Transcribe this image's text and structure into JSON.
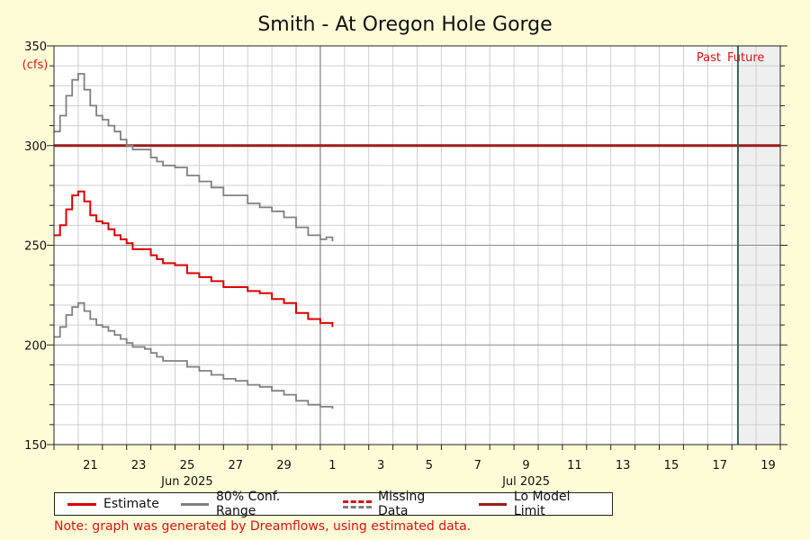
{
  "chart_data": {
    "type": "line",
    "title": "Smith - At Oregon Hole Gorge",
    "unit_label": "(cfs)",
    "ylim": [
      150,
      350
    ],
    "y_ticks": [
      "150",
      "200",
      "250",
      "300",
      "350"
    ],
    "x_range": [
      "2025-06-20",
      "2025-07-20"
    ],
    "x_tick_labels": [
      {
        "date": "2025-06-21",
        "label": "21"
      },
      {
        "date": "2025-06-23",
        "label": "23"
      },
      {
        "date": "2025-06-25",
        "label": "25"
      },
      {
        "date": "2025-06-27",
        "label": "27"
      },
      {
        "date": "2025-06-29",
        "label": "29"
      },
      {
        "date": "2025-07-01",
        "label": "1"
      },
      {
        "date": "2025-07-03",
        "label": "3"
      },
      {
        "date": "2025-07-05",
        "label": "5"
      },
      {
        "date": "2025-07-07",
        "label": "7"
      },
      {
        "date": "2025-07-09",
        "label": "9"
      },
      {
        "date": "2025-07-11",
        "label": "11"
      },
      {
        "date": "2025-07-13",
        "label": "13"
      },
      {
        "date": "2025-07-15",
        "label": "15"
      },
      {
        "date": "2025-07-17",
        "label": "17"
      },
      {
        "date": "2025-07-19",
        "label": "19"
      }
    ],
    "month_labels": [
      {
        "date": "2025-06-25",
        "label": "Jun 2025"
      },
      {
        "date": "2025-07-09",
        "label": "Jul 2025"
      }
    ],
    "past_label": "Past",
    "future_label": "Future",
    "now_marker": "2025-07-18T06:00",
    "data_end": "2025-06-30T24:00",
    "lo_model_limit": 300,
    "series": [
      {
        "name": "Estimate",
        "color": "#dd0000",
        "points": [
          [
            "2025-06-20T00:00",
            255
          ],
          [
            "2025-06-20T06:00",
            260
          ],
          [
            "2025-06-20T12:00",
            268
          ],
          [
            "2025-06-20T18:00",
            275
          ],
          [
            "2025-06-21T00:00",
            277
          ],
          [
            "2025-06-21T06:00",
            272
          ],
          [
            "2025-06-21T12:00",
            265
          ],
          [
            "2025-06-21T18:00",
            262
          ],
          [
            "2025-06-22T00:00",
            261
          ],
          [
            "2025-06-22T06:00",
            258
          ],
          [
            "2025-06-22T12:00",
            255
          ],
          [
            "2025-06-22T18:00",
            253
          ],
          [
            "2025-06-23T00:00",
            251
          ],
          [
            "2025-06-23T06:00",
            248
          ],
          [
            "2025-06-23T18:00",
            248
          ],
          [
            "2025-06-24T00:00",
            245
          ],
          [
            "2025-06-24T06:00",
            243
          ],
          [
            "2025-06-24T12:00",
            241
          ],
          [
            "2025-06-25T00:00",
            240
          ],
          [
            "2025-06-25T12:00",
            236
          ],
          [
            "2025-06-26T00:00",
            234
          ],
          [
            "2025-06-26T12:00",
            232
          ],
          [
            "2025-06-27T00:00",
            229
          ],
          [
            "2025-06-27T12:00",
            229
          ],
          [
            "2025-06-28T00:00",
            227
          ],
          [
            "2025-06-28T12:00",
            226
          ],
          [
            "2025-06-29T00:00",
            223
          ],
          [
            "2025-06-29T12:00",
            221
          ],
          [
            "2025-06-30T00:00",
            216
          ],
          [
            "2025-06-30T12:00",
            213
          ],
          [
            "2025-07-01T00:00",
            211
          ],
          [
            "2025-07-01T06:00",
            211
          ],
          [
            "2025-07-01T12:00",
            209
          ]
        ]
      },
      {
        "name": "80% Conf. Range",
        "role": "upper",
        "color": "#808080",
        "points": [
          [
            "2025-06-20T00:00",
            307
          ],
          [
            "2025-06-20T06:00",
            315
          ],
          [
            "2025-06-20T12:00",
            325
          ],
          [
            "2025-06-20T18:00",
            333
          ],
          [
            "2025-06-21T00:00",
            336
          ],
          [
            "2025-06-21T06:00",
            328
          ],
          [
            "2025-06-21T12:00",
            320
          ],
          [
            "2025-06-21T18:00",
            315
          ],
          [
            "2025-06-22T00:00",
            313
          ],
          [
            "2025-06-22T06:00",
            310
          ],
          [
            "2025-06-22T12:00",
            307
          ],
          [
            "2025-06-22T18:00",
            303
          ],
          [
            "2025-06-23T00:00",
            300
          ],
          [
            "2025-06-23T06:00",
            298
          ],
          [
            "2025-06-23T18:00",
            298
          ],
          [
            "2025-06-24T00:00",
            294
          ],
          [
            "2025-06-24T06:00",
            292
          ],
          [
            "2025-06-24T12:00",
            290
          ],
          [
            "2025-06-25T00:00",
            289
          ],
          [
            "2025-06-25T12:00",
            285
          ],
          [
            "2025-06-26T00:00",
            282
          ],
          [
            "2025-06-26T12:00",
            279
          ],
          [
            "2025-06-27T00:00",
            275
          ],
          [
            "2025-06-27T12:00",
            275
          ],
          [
            "2025-06-28T00:00",
            271
          ],
          [
            "2025-06-28T12:00",
            269
          ],
          [
            "2025-06-29T00:00",
            267
          ],
          [
            "2025-06-29T12:00",
            264
          ],
          [
            "2025-06-30T00:00",
            259
          ],
          [
            "2025-06-30T12:00",
            255
          ],
          [
            "2025-07-01T00:00",
            253
          ],
          [
            "2025-07-01T06:00",
            254
          ],
          [
            "2025-07-01T12:00",
            252
          ]
        ]
      },
      {
        "name": "80% Conf. Range",
        "role": "lower",
        "color": "#808080",
        "points": [
          [
            "2025-06-20T00:00",
            204
          ],
          [
            "2025-06-20T06:00",
            209
          ],
          [
            "2025-06-20T12:00",
            215
          ],
          [
            "2025-06-20T18:00",
            219
          ],
          [
            "2025-06-21T00:00",
            221
          ],
          [
            "2025-06-21T06:00",
            217
          ],
          [
            "2025-06-21T12:00",
            213
          ],
          [
            "2025-06-21T18:00",
            210
          ],
          [
            "2025-06-22T00:00",
            209
          ],
          [
            "2025-06-22T06:00",
            207
          ],
          [
            "2025-06-22T12:00",
            205
          ],
          [
            "2025-06-22T18:00",
            203
          ],
          [
            "2025-06-23T00:00",
            201
          ],
          [
            "2025-06-23T06:00",
            199
          ],
          [
            "2025-06-23T18:00",
            198
          ],
          [
            "2025-06-24T00:00",
            196
          ],
          [
            "2025-06-24T06:00",
            194
          ],
          [
            "2025-06-24T12:00",
            192
          ],
          [
            "2025-06-25T00:00",
            192
          ],
          [
            "2025-06-25T12:00",
            189
          ],
          [
            "2025-06-26T00:00",
            187
          ],
          [
            "2025-06-26T12:00",
            185
          ],
          [
            "2025-06-27T00:00",
            183
          ],
          [
            "2025-06-27T12:00",
            182
          ],
          [
            "2025-06-28T00:00",
            180
          ],
          [
            "2025-06-28T12:00",
            179
          ],
          [
            "2025-06-29T00:00",
            177
          ],
          [
            "2025-06-29T12:00",
            175
          ],
          [
            "2025-06-30T00:00",
            172
          ],
          [
            "2025-06-30T12:00",
            170
          ],
          [
            "2025-07-01T00:00",
            169
          ],
          [
            "2025-07-01T06:00",
            169
          ],
          [
            "2025-07-01T12:00",
            168
          ]
        ]
      }
    ],
    "lo_model_limit_color": "#9b1c1c",
    "now_marker_color": "#2e6b4e",
    "future_shade_color": "#efefef",
    "grid": true
  },
  "legend": {
    "estimate_label": "Estimate",
    "conf_label": "80% Conf. Range",
    "missing_label": "Missing Data",
    "lo_model_label": "Lo Model Limit",
    "missing_colors": [
      "#dd0000",
      "#808080"
    ]
  },
  "note": "Note: graph was generated by Dreamflows, using estimated data."
}
